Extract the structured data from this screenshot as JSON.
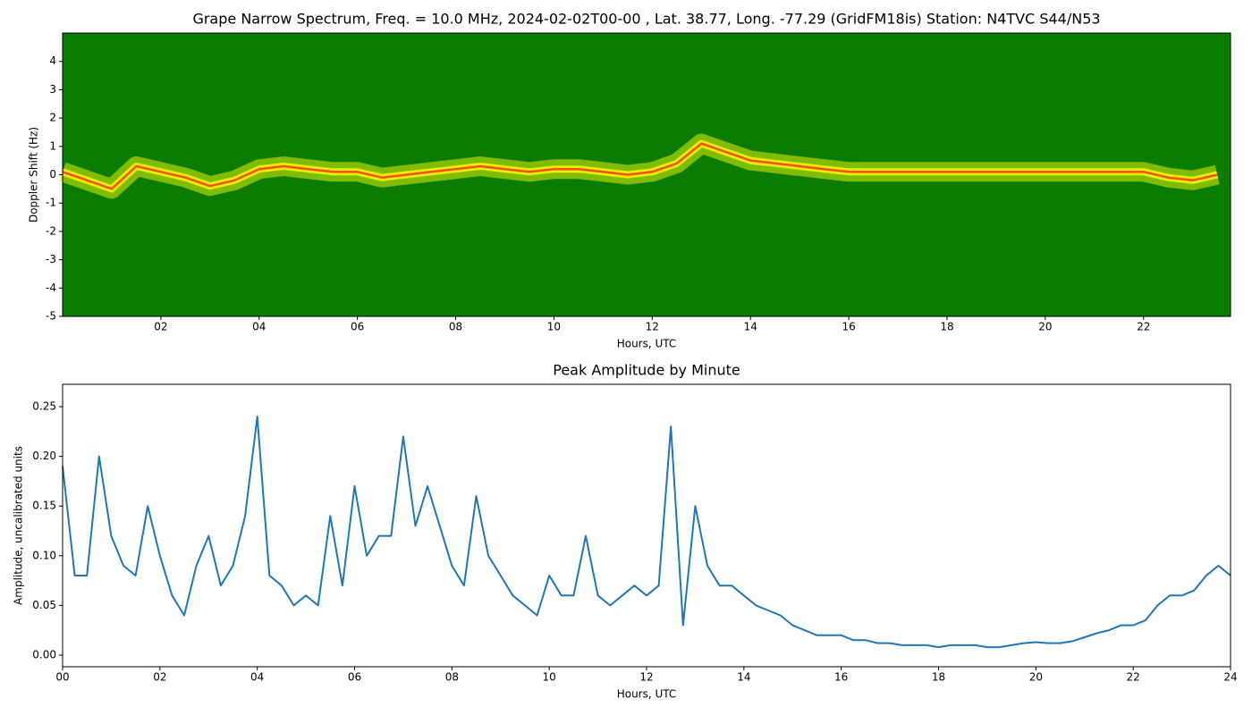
{
  "chart_data": [
    {
      "type": "spectrogram",
      "title": "Grape Narrow Spectrum, Freq. = 10.0 MHz, 2024-02-02T00-00 , Lat.  38.77, Long. -77.29 (GridFM18is) Station: N4TVC S44/N53",
      "x_label": "Hours, UTC",
      "y_label": "Doppler Shift (Hz)",
      "xlim": [
        0,
        23.77
      ],
      "ylim": [
        -5,
        5
      ],
      "xticks": [
        {
          "value": 2,
          "label": "02"
        },
        {
          "value": 4,
          "label": "04"
        },
        {
          "value": 6,
          "label": "06"
        },
        {
          "value": 8,
          "label": "08"
        },
        10,
        12,
        14,
        16,
        18,
        20,
        22
      ],
      "yticks": [
        -5,
        -4,
        -3,
        -2,
        -1,
        0,
        1,
        2,
        3,
        4
      ],
      "background_color": "#0a7d00",
      "glow_color": "#e6f000",
      "color": "#ff4a1a",
      "x": [
        0,
        0.5,
        1,
        1.5,
        2,
        2.5,
        3,
        3.5,
        4,
        4.5,
        5,
        5.5,
        6,
        6.5,
        7,
        7.5,
        8,
        8.5,
        9,
        9.5,
        10,
        10.5,
        11,
        11.5,
        12,
        12.5,
        13,
        13.5,
        14,
        14.5,
        15,
        15.5,
        16,
        17,
        18,
        19,
        20,
        21,
        22,
        22.5,
        23,
        23.5
      ],
      "values": [
        0.1,
        -0.2,
        -0.5,
        0.3,
        0.1,
        -0.1,
        -0.4,
        -0.2,
        0.2,
        0.3,
        0.2,
        0.1,
        0.1,
        -0.1,
        0.0,
        0.1,
        0.2,
        0.3,
        0.2,
        0.1,
        0.2,
        0.2,
        0.1,
        0.0,
        0.1,
        0.4,
        1.1,
        0.8,
        0.5,
        0.4,
        0.3,
        0.2,
        0.1,
        0.1,
        0.1,
        0.1,
        0.1,
        0.1,
        0.1,
        -0.1,
        -0.2,
        0.0
      ]
    },
    {
      "type": "line",
      "title": "Peak Amplitude by Minute",
      "x_label": "Hours, UTC",
      "y_label": "Amplitude, uncalibrated units",
      "xlim": [
        0,
        24
      ],
      "ylim": [
        -0.0117,
        0.2725
      ],
      "xticks": [
        {
          "value": 0,
          "label": "00"
        },
        {
          "value": 2,
          "label": "02"
        },
        {
          "value": 4,
          "label": "04"
        },
        {
          "value": 6,
          "label": "06"
        },
        {
          "value": 8,
          "label": "08"
        },
        10,
        12,
        14,
        16,
        18,
        20,
        22,
        24
      ],
      "yticks": [
        {
          "value": 0,
          "label": "0.00"
        },
        {
          "value": 0.05,
          "label": "0.05"
        },
        {
          "value": 0.1,
          "label": "0.10"
        },
        {
          "value": 0.15,
          "label": "0.15"
        },
        {
          "value": 0.2,
          "label": "0.20"
        },
        {
          "value": 0.25,
          "label": "0.25"
        }
      ],
      "color": "#1f77b4",
      "x": [
        0,
        0.25,
        0.5,
        0.75,
        1,
        1.25,
        1.5,
        1.75,
        2,
        2.25,
        2.5,
        2.75,
        3,
        3.25,
        3.5,
        3.75,
        4,
        4.25,
        4.5,
        4.75,
        5,
        5.25,
        5.5,
        5.75,
        6,
        6.25,
        6.5,
        6.75,
        7,
        7.25,
        7.5,
        7.75,
        8,
        8.25,
        8.5,
        8.75,
        9,
        9.25,
        9.5,
        9.75,
        10,
        10.25,
        10.5,
        10.75,
        11,
        11.25,
        11.5,
        11.75,
        12,
        12.25,
        12.5,
        12.75,
        13,
        13.25,
        13.5,
        13.75,
        14,
        14.25,
        14.5,
        14.75,
        15,
        15.25,
        15.5,
        15.75,
        16,
        16.25,
        16.5,
        16.75,
        17,
        17.25,
        17.5,
        17.75,
        18,
        18.25,
        18.5,
        18.75,
        19,
        19.25,
        19.5,
        19.75,
        20,
        20.25,
        20.5,
        20.75,
        21,
        21.25,
        21.5,
        21.75,
        22,
        22.25,
        22.5,
        22.75,
        23,
        23.25,
        23.5,
        23.75,
        24
      ],
      "values": [
        0.19,
        0.08,
        0.08,
        0.2,
        0.12,
        0.09,
        0.08,
        0.15,
        0.1,
        0.06,
        0.04,
        0.09,
        0.12,
        0.07,
        0.09,
        0.14,
        0.24,
        0.08,
        0.07,
        0.05,
        0.06,
        0.05,
        0.14,
        0.07,
        0.17,
        0.1,
        0.12,
        0.12,
        0.22,
        0.13,
        0.17,
        0.13,
        0.09,
        0.07,
        0.16,
        0.1,
        0.08,
        0.06,
        0.05,
        0.04,
        0.08,
        0.06,
        0.06,
        0.12,
        0.06,
        0.05,
        0.06,
        0.07,
        0.06,
        0.07,
        0.23,
        0.03,
        0.15,
        0.09,
        0.07,
        0.07,
        0.06,
        0.05,
        0.045,
        0.04,
        0.03,
        0.025,
        0.02,
        0.02,
        0.02,
        0.015,
        0.015,
        0.012,
        0.012,
        0.01,
        0.01,
        0.01,
        0.008,
        0.01,
        0.01,
        0.01,
        0.008,
        0.008,
        0.01,
        0.012,
        0.013,
        0.012,
        0.012,
        0.014,
        0.018,
        0.022,
        0.025,
        0.03,
        0.03,
        0.035,
        0.05,
        0.06,
        0.06,
        0.065,
        0.08,
        0.09,
        0.08
      ]
    }
  ]
}
